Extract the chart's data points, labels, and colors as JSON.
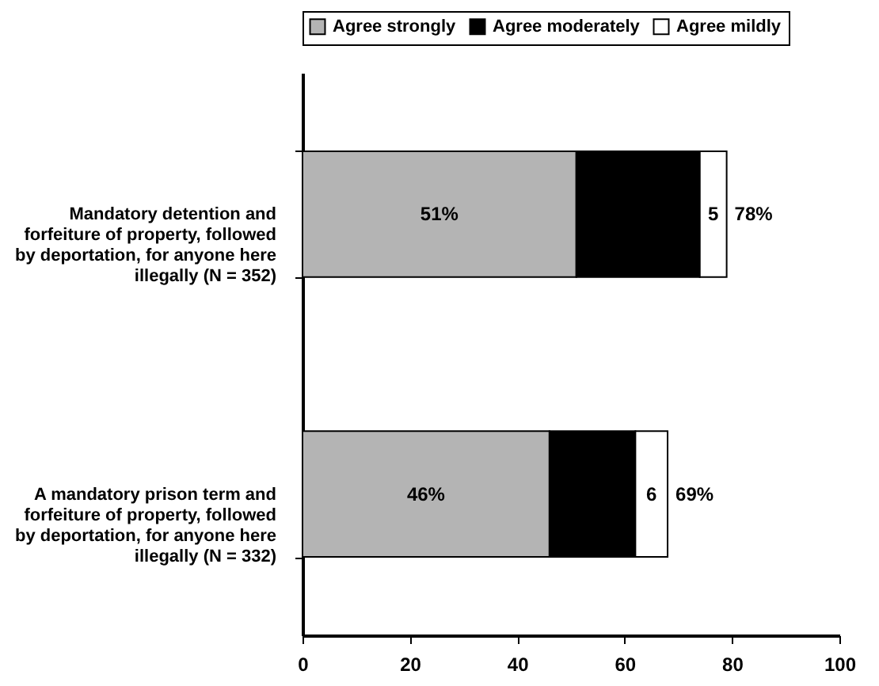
{
  "chart_data": {
    "type": "bar",
    "orientation": "horizontal",
    "stacked": true,
    "categories": [
      "Mandatory detention and forfeiture of property, followed by deportation, for anyone here illegally (N = 352)",
      "A mandatory prison term and forfeiture of property, followed by deportation, for anyone here illegally (N = 332)"
    ],
    "series": [
      {
        "name": "Agree strongly",
        "color": "#b4b4b4",
        "values": [
          51,
          46
        ],
        "value_labels": [
          "51%",
          "46%"
        ]
      },
      {
        "name": "Agree moderately",
        "color": "#000000",
        "values": [
          23,
          16
        ]
      },
      {
        "name": "Agree mildly",
        "color": "#ffffff",
        "values": [
          5,
          6
        ],
        "value_labels": [
          "5",
          "6"
        ]
      }
    ],
    "totals": [
      "78%",
      "69%"
    ],
    "xlim": [
      0,
      100
    ],
    "xticks": [
      0,
      20,
      40,
      60,
      80,
      100
    ],
    "legend": "top"
  }
}
